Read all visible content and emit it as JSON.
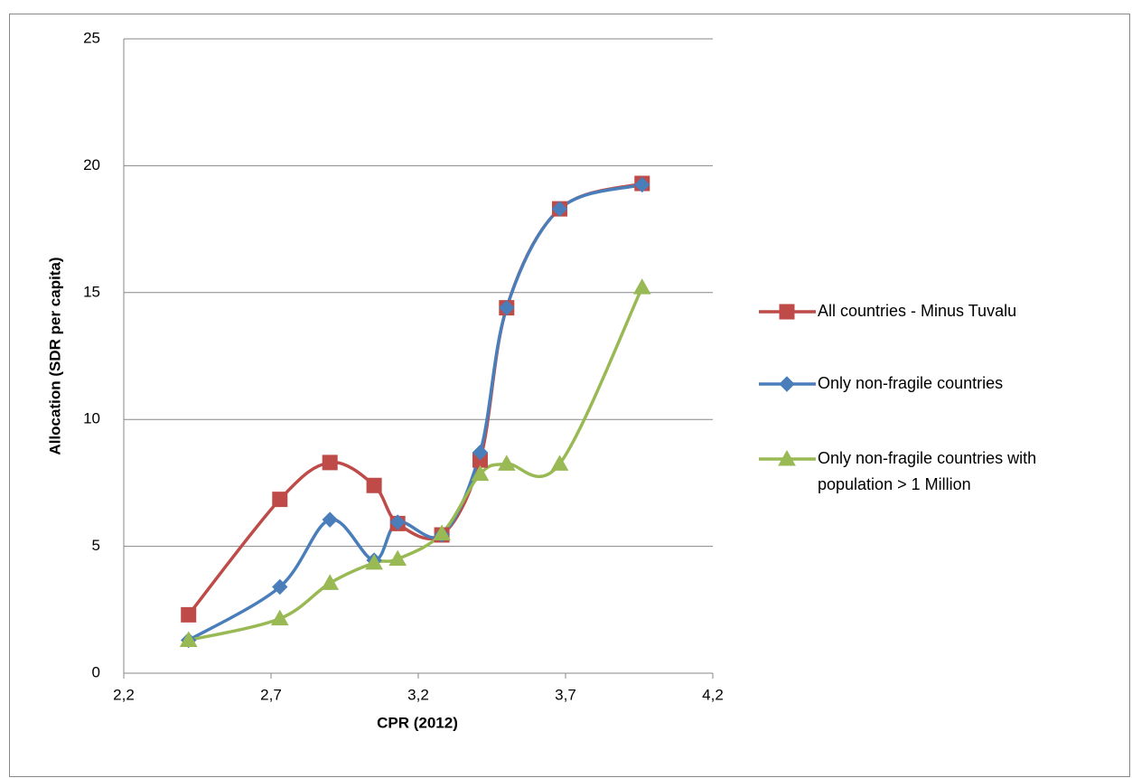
{
  "chart_data": {
    "type": "line",
    "x_label": "CPR (2012)",
    "y_label": "Allocation (SDR per capita)",
    "x": [
      2.42,
      2.73,
      2.9,
      3.05,
      3.13,
      3.28,
      3.41,
      3.5,
      3.68,
      3.96
    ],
    "series": [
      {
        "name": "All countries - Minus Tuvalu",
        "color": "#be4b48",
        "marker": "square",
        "values": [
          2.3,
          6.85,
          8.3,
          7.4,
          5.9,
          5.45,
          8.4,
          14.4,
          18.3,
          19.3
        ]
      },
      {
        "name": "Only non-fragile countries",
        "color": "#4a7ebb",
        "marker": "diamond",
        "values": [
          1.3,
          3.4,
          6.05,
          4.45,
          5.95,
          5.45,
          8.7,
          14.4,
          18.3,
          19.25
        ]
      },
      {
        "name": "Only non-fragile countries with population > 1 Million",
        "color": "#98b954",
        "marker": "triangle",
        "values": [
          1.3,
          2.15,
          3.55,
          4.35,
          4.5,
          5.5,
          7.85,
          8.25,
          8.25,
          15.2
        ]
      }
    ],
    "xlim": [
      2.2,
      4.2
    ],
    "xticks": [
      {
        "value": 2.2,
        "label": "2,2"
      },
      {
        "value": 2.7,
        "label": "2,7"
      },
      {
        "value": 3.2,
        "label": "3,2"
      },
      {
        "value": 3.7,
        "label": "3,7"
      },
      {
        "value": 4.2,
        "label": "4,2"
      }
    ],
    "ylim": [
      0,
      25
    ],
    "yticks": [
      0,
      5,
      10,
      15,
      20,
      25
    ],
    "grid": true,
    "smooth": true,
    "legend": "right"
  }
}
